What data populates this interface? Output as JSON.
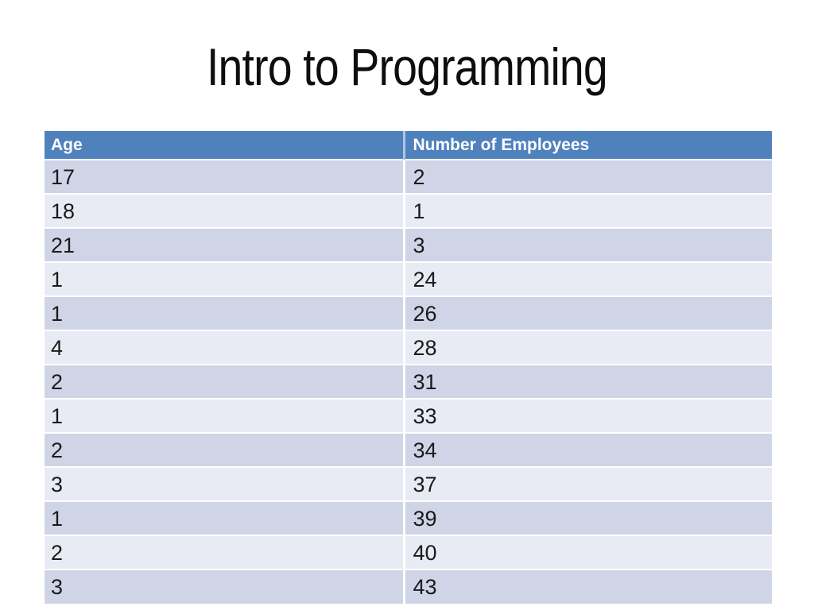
{
  "slide": {
    "title": "Intro to Programming"
  },
  "table": {
    "columns": [
      {
        "label": "Age"
      },
      {
        "label": "Number of Employees"
      }
    ],
    "rows": [
      {
        "age": "17",
        "employees": "2"
      },
      {
        "age": "18",
        "employees": "1"
      },
      {
        "age": "21",
        "employees": "3"
      },
      {
        "age": "1",
        "employees": "24"
      },
      {
        "age": "1",
        "employees": "26"
      },
      {
        "age": "4",
        "employees": "28"
      },
      {
        "age": "2",
        "employees": "31"
      },
      {
        "age": "1",
        "employees": "33"
      },
      {
        "age": "2",
        "employees": "34"
      },
      {
        "age": "3",
        "employees": "37"
      },
      {
        "age": "1",
        "employees": "39"
      },
      {
        "age": "2",
        "employees": "40"
      },
      {
        "age": "3",
        "employees": "43"
      }
    ]
  },
  "colors": {
    "slide_bg": "#FFFFFF",
    "title_text": "#0E0E0E",
    "header_bg": "#4F81BD",
    "header_text": "#FFFFFF",
    "row_dark": "#CFD5E6",
    "row_light": "#E9EBF4",
    "body_text": "#1A1A1A"
  }
}
